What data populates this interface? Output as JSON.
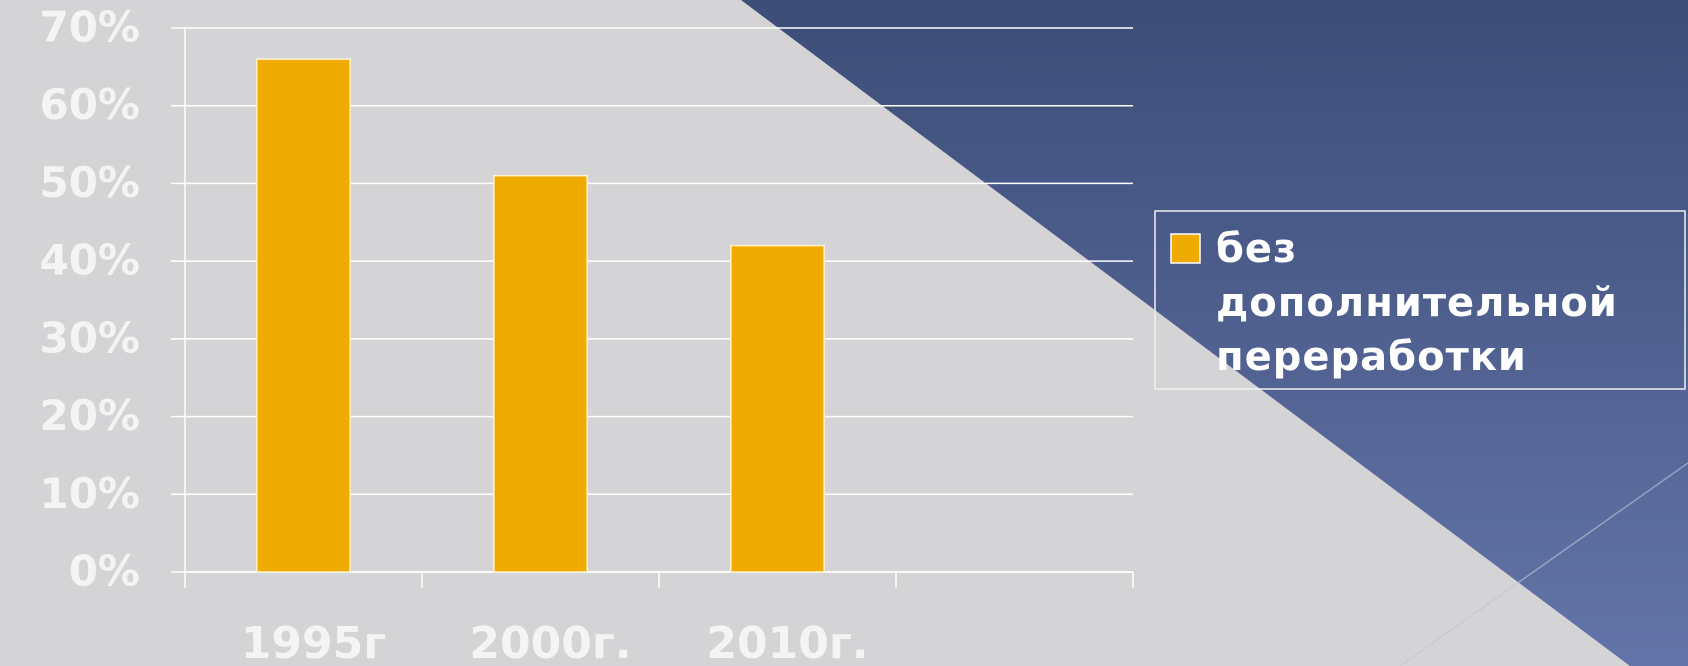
{
  "chart_data": {
    "type": "bar",
    "categories": [
      "1995г",
      "2000г.",
      "2010г.",
      null
    ],
    "series": [
      {
        "name": "без дополнительной переработки",
        "color": "#f0ab00",
        "values": [
          66,
          51,
          42,
          null
        ]
      }
    ],
    "ylim": [
      0,
      70
    ],
    "yticks": [
      {
        "value": 0,
        "label": "0%"
      },
      {
        "value": 10,
        "label": "10%"
      },
      {
        "value": 20,
        "label": "20%"
      },
      {
        "value": 30,
        "label": "30%"
      },
      {
        "value": 40,
        "label": "40%"
      },
      {
        "value": 50,
        "label": "50%"
      },
      {
        "value": 60,
        "label": "60%"
      },
      {
        "value": 70,
        "label": "70%"
      }
    ],
    "grid": true,
    "legend": "right"
  }
}
